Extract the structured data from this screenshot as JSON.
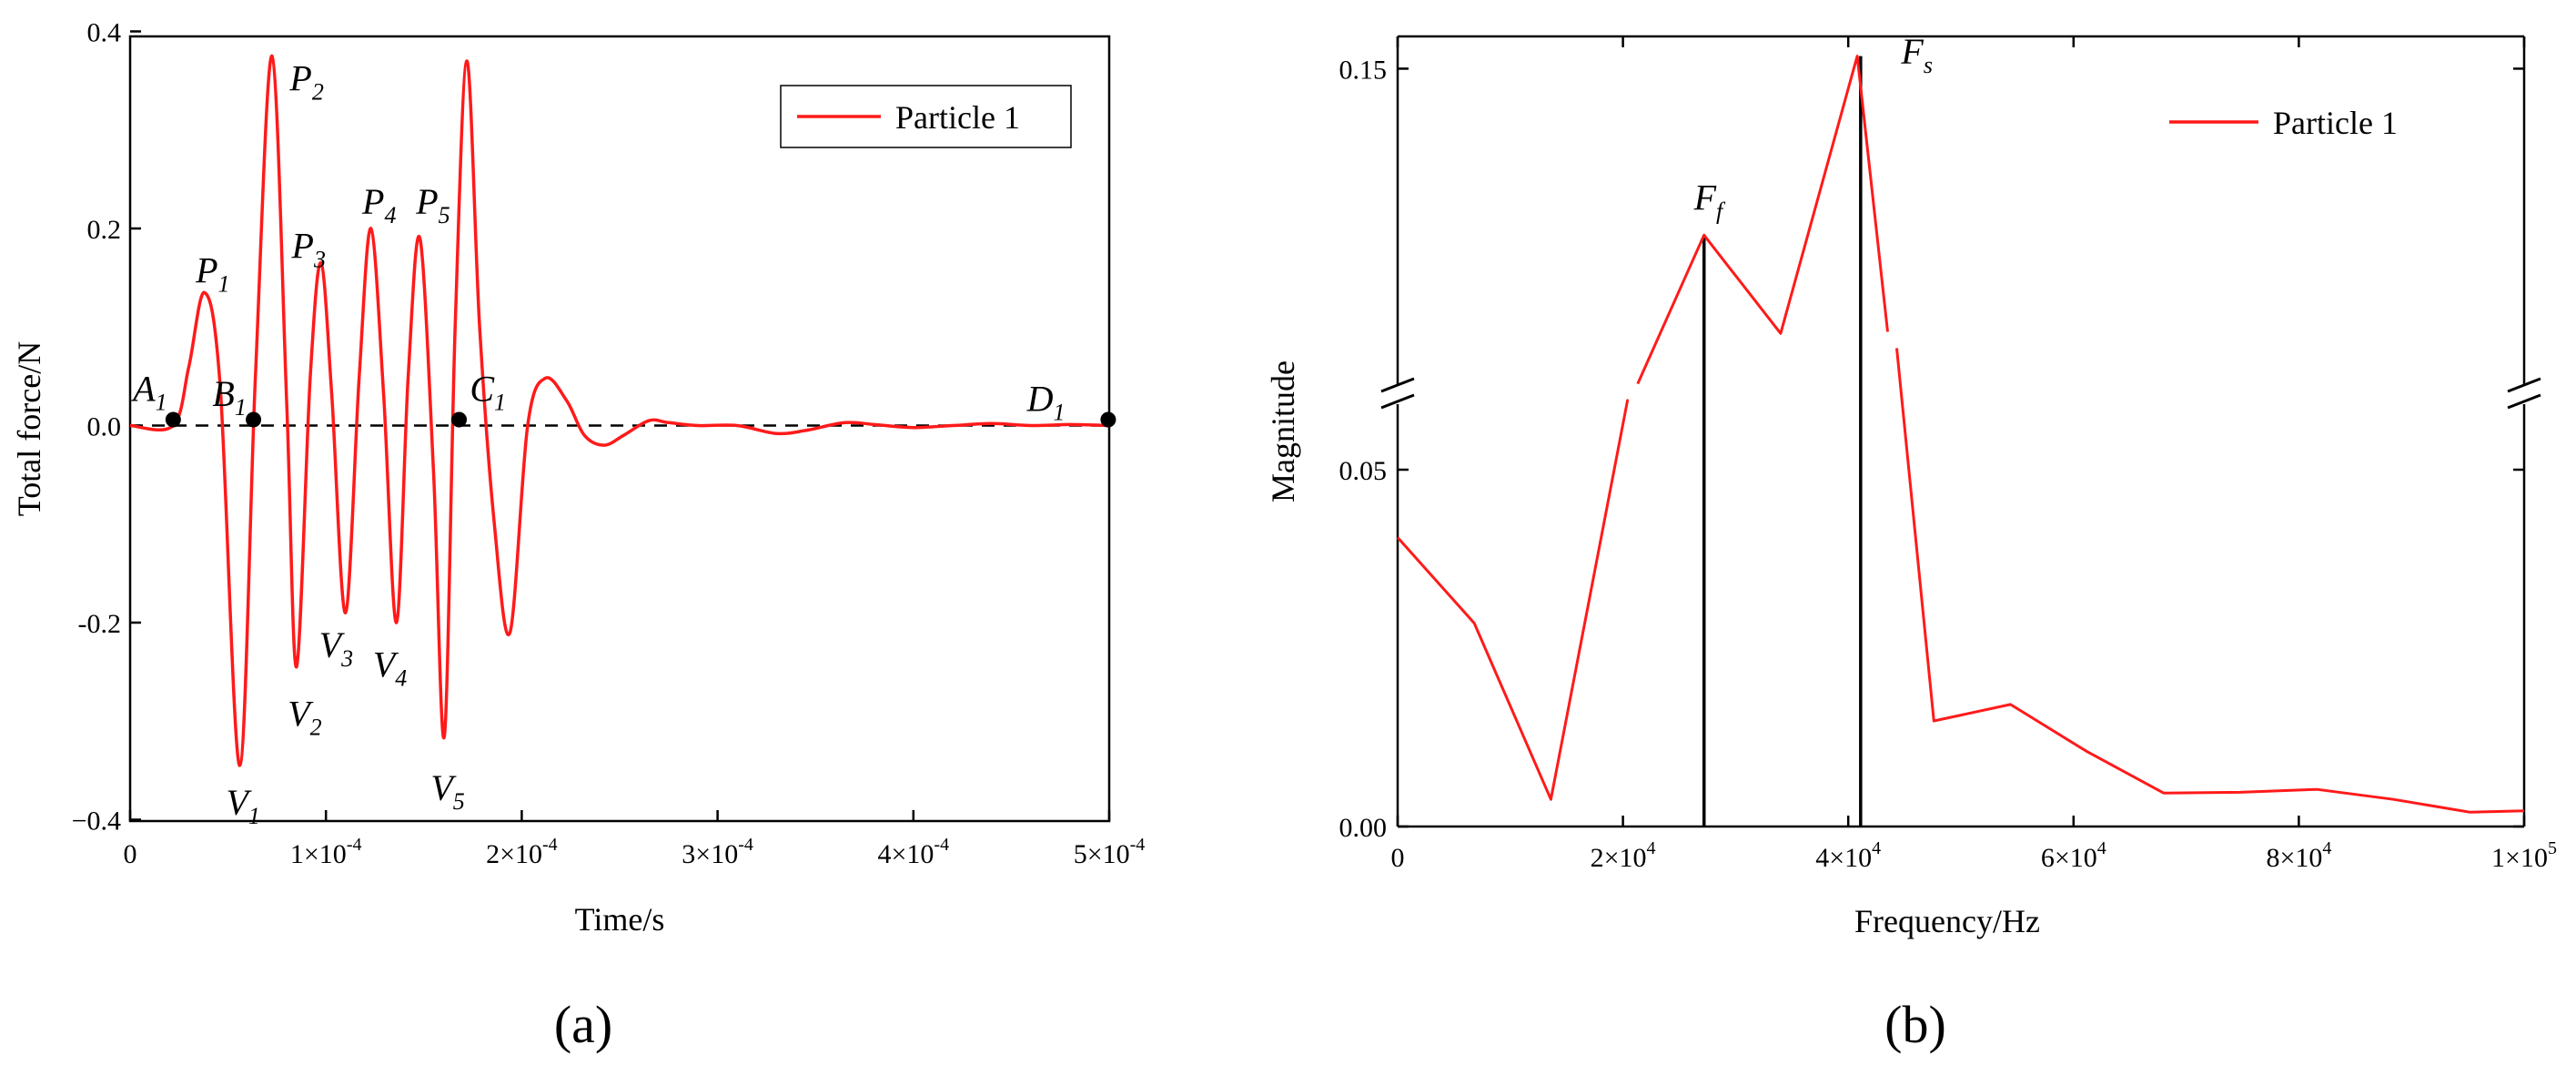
{
  "chart_data": [
    {
      "id": "a",
      "panel_label": "(a)",
      "type": "line",
      "xlabel": "Time/s",
      "ylabel": "Total force/N",
      "xlim": [
        0,
        0.0005
      ],
      "ylim": [
        -0.4,
        0.4
      ],
      "x_ticks": [
        {
          "value": 0,
          "mantissa": "0",
          "exp": ""
        },
        {
          "value": 0.0001,
          "mantissa": "1×10",
          "exp": "-4"
        },
        {
          "value": 0.0002,
          "mantissa": "2×10",
          "exp": "-4"
        },
        {
          "value": 0.0003,
          "mantissa": "3×10",
          "exp": "-4"
        },
        {
          "value": 0.0004,
          "mantissa": "4×10",
          "exp": "-4"
        },
        {
          "value": 0.0005,
          "mantissa": "5×10",
          "exp": "-4"
        }
      ],
      "y_ticks": [
        {
          "value": -0.4,
          "label": "−0.4"
        },
        {
          "value": -0.2,
          "label": "-0.2"
        },
        {
          "value": 0.0,
          "label": "0.0"
        },
        {
          "value": 0.2,
          "label": "0.2"
        },
        {
          "value": 0.4,
          "label": "0.4"
        }
      ],
      "legend": {
        "label": "Particle 1",
        "color": "#ff1a1a",
        "position": "top-right"
      },
      "reference_line": {
        "y": 0,
        "style": "dashed"
      },
      "series": [
        {
          "name": "Particle 1",
          "color": "#ff1a1a",
          "x": [
            0,
            2.2e-05,
            3e-05,
            3.8e-05,
            4.6e-05,
            5.6e-05,
            6.4e-05,
            7.25e-05,
            8e-05,
            8.5e-05,
            9.2e-05,
            9.75e-05,
            0.000103,
            0.00011,
            0.000117,
            0.000123,
            0.0001295,
            0.000136,
            0.000142,
            0.000148,
            0.000155,
            0.0001605,
            0.000166,
            0.000172,
            0.0001785,
            0.000186,
            0.000194,
            0.000203,
            0.000212,
            0.000223,
            0.000232,
            0.000242,
            0.000252,
            0.000265,
            0.000275,
            0.00029,
            0.00031,
            0.00033,
            0.000345,
            0.000365,
            0.00038,
            0.0004,
            0.00042,
            0.00044,
            0.00046,
            0.00048,
            0.0005
          ],
          "y": [
            0,
            0,
            0.06,
            0.135,
            0.04,
            -0.345,
            0.05,
            0.375,
            0.02,
            -0.245,
            0.05,
            0.165,
            0.03,
            -0.19,
            0.05,
            0.2,
            0.03,
            -0.2,
            0.05,
            0.19,
            -0.05,
            -0.315,
            0.1,
            0.37,
            0.1,
            -0.1,
            -0.21,
            0.0,
            0.048,
            0.025,
            -0.01,
            -0.02,
            -0.01,
            0.005,
            0.003,
            0.0,
            0.0,
            -0.008,
            -0.005,
            0.003,
            0.001,
            -0.002,
            0.0,
            0.002,
            0.0,
            0.001,
            0.0
          ]
        }
      ],
      "annotations": [
        {
          "main": "P",
          "sub": "1",
          "x": 3.35e-05,
          "y": 0.145
        },
        {
          "main": "P",
          "sub": "2",
          "x": 8.15e-05,
          "y": 0.34
        },
        {
          "main": "P",
          "sub": "3",
          "x": 8.25e-05,
          "y": 0.17
        },
        {
          "main": "P",
          "sub": "4",
          "x": 0.0001185,
          "y": 0.215
        },
        {
          "main": "P",
          "sub": "5",
          "x": 0.000146,
          "y": 0.215
        },
        {
          "main": "V",
          "sub": "1",
          "x": 4.9e-05,
          "y": -0.395
        },
        {
          "main": "V",
          "sub": "2",
          "x": 8.05e-05,
          "y": -0.305
        },
        {
          "main": "V",
          "sub": "3",
          "x": 9.65e-05,
          "y": -0.235
        },
        {
          "main": "V",
          "sub": "4",
          "x": 0.000124,
          "y": -0.255
        },
        {
          "main": "V",
          "sub": "5",
          "x": 0.0001535,
          "y": -0.38
        },
        {
          "main": "A",
          "sub": "1",
          "x": 1.5e-06,
          "y": 0.025
        },
        {
          "main": "B",
          "sub": "1",
          "x": 4.2e-05,
          "y": 0.02
        },
        {
          "main": "C",
          "sub": "1",
          "x": 0.0001735,
          "y": 0.025
        },
        {
          "main": "D",
          "sub": "1",
          "x": 0.000458,
          "y": 0.015
        }
      ],
      "points": [
        {
          "label": "A1",
          "x": 2.2e-05,
          "y": 0.006
        },
        {
          "label": "B1",
          "x": 6.3e-05,
          "y": 0.006
        },
        {
          "label": "C1",
          "x": 0.000168,
          "y": 0.006
        },
        {
          "label": "D1",
          "x": 0.0004995,
          "y": 0.006
        }
      ]
    },
    {
      "id": "b",
      "panel_label": "(b)",
      "type": "line",
      "xlabel": "Frequency/Hz",
      "ylabel": "Magnitude",
      "xlim": [
        0,
        100000
      ],
      "ylim": [
        0,
        0.16
      ],
      "axis_break": {
        "y_low": 0.061,
        "y_high": 0.086,
        "gap_x": [
          20500,
          43500
        ]
      },
      "x_ticks": [
        {
          "value": 0,
          "mantissa": "0",
          "exp": ""
        },
        {
          "value": 20000,
          "mantissa": "2×10",
          "exp": "4"
        },
        {
          "value": 40000,
          "mantissa": "4×10",
          "exp": "4"
        },
        {
          "value": 60000,
          "mantissa": "6×10",
          "exp": "4"
        },
        {
          "value": 80000,
          "mantissa": "8×10",
          "exp": "4"
        },
        {
          "value": 100000,
          "mantissa": "1×10",
          "exp": "5"
        }
      ],
      "y_ticks": [
        {
          "value": 0.0,
          "label": "0.00"
        },
        {
          "value": 0.05,
          "label": "0.05"
        },
        {
          "value": 0.15,
          "label": "0.15"
        }
      ],
      "legend": {
        "label": "Particle 1",
        "color": "#ff1a1a",
        "position": "top-right"
      },
      "series": [
        {
          "name": "Particle 1",
          "color": "#ff1a1a",
          "x": [
            0,
            6800,
            13600,
            20400,
            27200,
            34000,
            40800,
            47600,
            54400,
            61200,
            68000,
            74800,
            81600,
            88400,
            95200,
            100000
          ],
          "y": [
            0.0405,
            0.0285,
            0.0038,
            0.0612,
            0.117,
            0.0975,
            0.1525,
            0.0148,
            0.0171,
            0.0105,
            0.0047,
            0.0048,
            0.0052,
            0.0038,
            0.002,
            0.0022
          ]
        }
      ],
      "stems": [
        {
          "label": "F_f",
          "x": 27200,
          "y": 0.117
        },
        {
          "label": "F_s",
          "x": 41100,
          "y": 0.1525
        }
      ],
      "annotations": [
        {
          "main": "F",
          "sub": "f",
          "x": 26300,
          "y": 0.122
        },
        {
          "main": "F",
          "sub": "s",
          "x": 44700,
          "y": 0.151
        }
      ]
    }
  ]
}
